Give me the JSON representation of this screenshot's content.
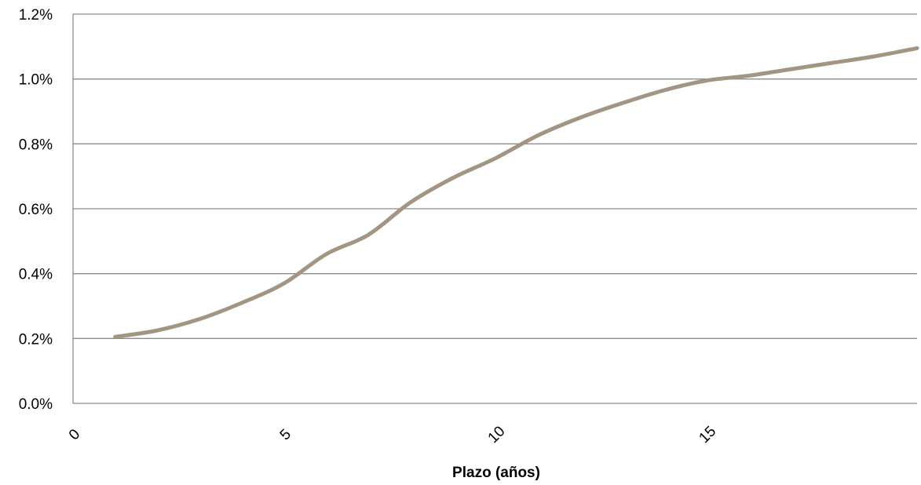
{
  "chart_data": {
    "type": "line",
    "title": "",
    "xlabel": "Plazo (años)",
    "ylabel": "",
    "xlim": [
      0,
      20
    ],
    "ylim": [
      0.0,
      1.2
    ],
    "x_ticks": [
      0,
      5,
      10,
      15
    ],
    "x_tick_labels": [
      "0",
      "5",
      "10",
      "15"
    ],
    "y_ticks": [
      0.0,
      0.2,
      0.4,
      0.6,
      0.8,
      1.0,
      1.2
    ],
    "y_tick_labels": [
      "0.0%",
      "0.2%",
      "0.4%",
      "0.6%",
      "0.8%",
      "1.0%",
      "1.2%"
    ],
    "grid": "horizontal",
    "legend": "none",
    "line_color": "#a39584",
    "series": [
      {
        "x": [
          1,
          2,
          3,
          4,
          5,
          6,
          7,
          8,
          9,
          10,
          11,
          12,
          13,
          14,
          15,
          16,
          17,
          18,
          19,
          20
        ],
        "values": [
          0.205,
          0.225,
          0.26,
          0.31,
          0.37,
          0.46,
          0.52,
          0.62,
          0.695,
          0.755,
          0.825,
          0.88,
          0.925,
          0.965,
          0.995,
          1.01,
          1.03,
          1.05,
          1.07,
          1.095
        ]
      }
    ]
  }
}
